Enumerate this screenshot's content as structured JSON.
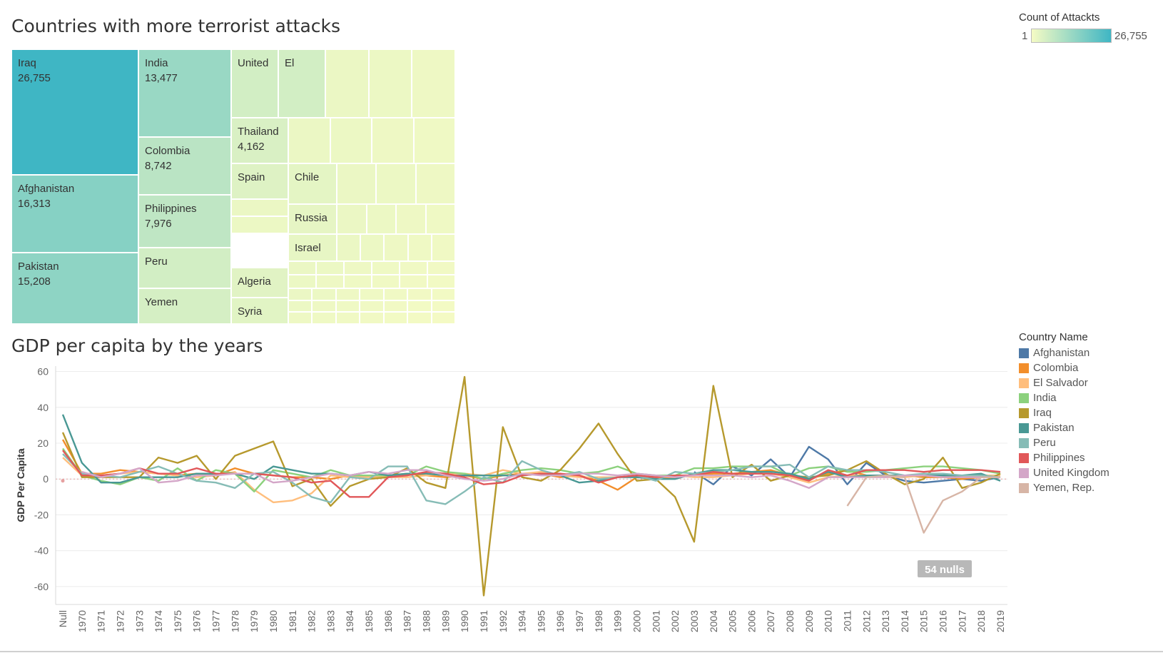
{
  "treemap": {
    "title": "Countries with more terrorist attacks",
    "color_legend": {
      "title": "Count of Attackts",
      "min": "1",
      "max": "26,755",
      "color_low": "#f5fbc4",
      "color_high": "#3fb6c4"
    }
  },
  "line_chart": {
    "title": "GDP per capita by the years",
    "nulls_label": "54 nulls"
  },
  "legend": {
    "title": "Country Name",
    "items": [
      {
        "name": "Afghanistan",
        "color": "#4e79a7"
      },
      {
        "name": "Colombia",
        "color": "#f28e2b"
      },
      {
        "name": "El Salvador",
        "color": "#ffbe7d"
      },
      {
        "name": "India",
        "color": "#8cd17d"
      },
      {
        "name": "Iraq",
        "color": "#b6992d"
      },
      {
        "name": "Pakistan",
        "color": "#499894"
      },
      {
        "name": "Peru",
        "color": "#86bcb6"
      },
      {
        "name": "Philippines",
        "color": "#e15759"
      },
      {
        "name": "United Kingdom",
        "color": "#d4a6c8"
      },
      {
        "name": "Yemen, Rep.",
        "color": "#d7b5a6"
      }
    ]
  },
  "chart_data": [
    {
      "type": "treemap",
      "title": "Countries with more terrorist attacks",
      "color_metric": "Count of Attackts",
      "items": [
        {
          "label": "Iraq",
          "value": 26755,
          "value_label": "26,755"
        },
        {
          "label": "Afghanistan",
          "value": 16313,
          "value_label": "16,313"
        },
        {
          "label": "Pakistan",
          "value": 15208,
          "value_label": "15,208"
        },
        {
          "label": "India",
          "value": 13477,
          "value_label": "13,477"
        },
        {
          "label": "Colombia",
          "value": 8742,
          "value_label": "8,742"
        },
        {
          "label": "Philippines",
          "value": 7976,
          "value_label": "7,976"
        },
        {
          "label": "Peru"
        },
        {
          "label": "Yemen"
        },
        {
          "label": "United"
        },
        {
          "label": "El"
        },
        {
          "label": "Thailand",
          "value": 4162,
          "value_label": "4,162"
        },
        {
          "label": "Spain"
        },
        {
          "label": "Algeria"
        },
        {
          "label": "Syria"
        },
        {
          "label": "Chile"
        },
        {
          "label": "Russia"
        },
        {
          "label": "Israel"
        }
      ]
    },
    {
      "type": "line",
      "title": "GDP per capita by the years",
      "ylabel": "GDP Per Capita",
      "ylim": [
        -70,
        63
      ],
      "yticks": [
        60,
        40,
        20,
        0,
        -20,
        -40,
        -60
      ],
      "grid": true,
      "legend_position": "right",
      "x": [
        "Null",
        "1970",
        "1971",
        "1972",
        "1973",
        "1974",
        "1975",
        "1976",
        "1977",
        "1978",
        "1979",
        "1980",
        "1981",
        "1982",
        "1983",
        "1984",
        "1985",
        "1986",
        "1987",
        "1988",
        "1989",
        "1990",
        "1991",
        "1992",
        "1994",
        "1995",
        "1996",
        "1997",
        "1998",
        "1999",
        "2000",
        "2001",
        "2002",
        "2003",
        "2004",
        "2005",
        "2006",
        "2007",
        "2008",
        "2009",
        "2010",
        "2011",
        "2012",
        "2013",
        "2014",
        "2015",
        "2016",
        "2017",
        "2018",
        "2019"
      ],
      "series": [
        {
          "name": "Afghanistan",
          "values": [
            null,
            null,
            null,
            null,
            null,
            null,
            null,
            null,
            null,
            null,
            null,
            null,
            null,
            null,
            null,
            null,
            null,
            null,
            null,
            null,
            null,
            null,
            null,
            null,
            null,
            null,
            null,
            null,
            null,
            null,
            null,
            null,
            null,
            4,
            -3,
            7,
            2,
            11,
            1,
            18,
            11,
            -3,
            9,
            2,
            -1,
            -2,
            -1,
            0,
            -1,
            1
          ]
        },
        {
          "name": "Colombia",
          "values": [
            22,
            3,
            3,
            5,
            4,
            3,
            2,
            3,
            2,
            6,
            3,
            2,
            1,
            1,
            0,
            2,
            2,
            2,
            3,
            2,
            1,
            2,
            0,
            2,
            3,
            3,
            1,
            2,
            -1,
            -6,
            1,
            1,
            1,
            2,
            3,
            3,
            4,
            5,
            2,
            0,
            3,
            5,
            2,
            2,
            2,
            1,
            1,
            0,
            1,
            2
          ]
        },
        {
          "name": "El Salvador",
          "values": [
            12,
            2,
            2,
            3,
            4,
            3,
            2,
            1,
            2,
            4,
            -6,
            -13,
            -12,
            -8,
            2,
            1,
            1,
            1,
            1,
            2,
            3,
            3,
            2,
            5,
            3,
            4,
            2,
            1,
            1,
            1,
            2,
            1,
            2,
            1,
            1,
            2,
            3,
            3,
            1,
            -2,
            1,
            2,
            2,
            1,
            1,
            2,
            2,
            1,
            2,
            2
          ]
        },
        {
          "name": "India",
          "values": [
            17,
            2,
            -1,
            -3,
            1,
            -1,
            6,
            -1,
            5,
            3,
            -7,
            5,
            3,
            1,
            5,
            2,
            2,
            2,
            2,
            7,
            4,
            3,
            0,
            3,
            5,
            6,
            5,
            3,
            4,
            7,
            3,
            2,
            2,
            6,
            6,
            7,
            7,
            7,
            2,
            6,
            7,
            4,
            4,
            5,
            6,
            7,
            7,
            6,
            5,
            3
          ]
        },
        {
          "name": "Iraq",
          "values": [
            26,
            1,
            1,
            1,
            1,
            12,
            9,
            13,
            0,
            13,
            17,
            21,
            -4,
            0,
            -15,
            -4,
            0,
            1,
            6,
            -2,
            -5,
            57,
            -65,
            29,
            1,
            -1,
            5,
            17,
            31,
            14,
            -1,
            0,
            -10,
            -35,
            52,
            1,
            8,
            -1,
            2,
            1,
            2,
            5,
            10,
            3,
            -3,
            0,
            12,
            -5,
            -2,
            3
          ]
        },
        {
          "name": "Pakistan",
          "values": [
            36,
            9,
            -2,
            -2,
            1,
            1,
            1,
            3,
            3,
            3,
            0,
            7,
            5,
            3,
            3,
            2,
            4,
            2,
            3,
            3,
            2,
            2,
            2,
            2,
            2,
            3,
            2,
            -2,
            -1,
            1,
            1,
            0,
            0,
            3,
            5,
            5,
            4,
            4,
            3,
            0,
            4,
            1,
            2,
            2,
            2,
            2,
            2,
            2,
            3,
            -1
          ]
        },
        {
          "name": "Peru",
          "values": [
            14,
            3,
            2,
            1,
            4,
            7,
            3,
            -1,
            -2,
            -5,
            3,
            4,
            -2,
            -10,
            -13,
            1,
            0,
            7,
            7,
            -12,
            -14,
            -7,
            1,
            -2,
            10,
            5,
            2,
            4,
            0,
            1,
            2,
            -1,
            4,
            3,
            4,
            5,
            7,
            7,
            8,
            1,
            7,
            5,
            5,
            4,
            2,
            3,
            3,
            2,
            2,
            1
          ]
        },
        {
          "name": "Philippines",
          "values": [
            16,
            2,
            2,
            3,
            6,
            3,
            3,
            6,
            3,
            3,
            3,
            2,
            1,
            -2,
            -1,
            -10,
            -10,
            1,
            2,
            4,
            3,
            1,
            -3,
            -2,
            2,
            3,
            3,
            2,
            -2,
            1,
            2,
            1,
            2,
            2,
            4,
            3,
            3,
            3,
            2,
            -1,
            5,
            2,
            5,
            5,
            5,
            4,
            5,
            5,
            5,
            4
          ]
        },
        {
          "name": "United Kingdom",
          "values": [
            null,
            4,
            1,
            3,
            6,
            -2,
            -1,
            2,
            2,
            3,
            3,
            -2,
            -1,
            1,
            3,
            2,
            4,
            3,
            5,
            5,
            2,
            0,
            -1,
            0,
            3,
            2,
            2,
            3,
            3,
            2,
            3,
            2,
            1,
            2,
            2,
            2,
            1,
            2,
            -1,
            -5,
            1,
            1,
            1,
            1,
            2,
            2,
            1,
            1,
            1,
            1
          ]
        },
        {
          "name": "Yemen, Rep.",
          "values": [
            null,
            null,
            null,
            null,
            null,
            null,
            null,
            null,
            null,
            null,
            null,
            null,
            null,
            null,
            null,
            null,
            null,
            null,
            null,
            null,
            null,
            null,
            null,
            null,
            null,
            null,
            null,
            null,
            null,
            null,
            null,
            null,
            null,
            null,
            null,
            null,
            null,
            null,
            null,
            null,
            null,
            -15,
            1,
            2,
            1,
            -30,
            -12,
            -7,
            1,
            1
          ]
        }
      ]
    }
  ]
}
